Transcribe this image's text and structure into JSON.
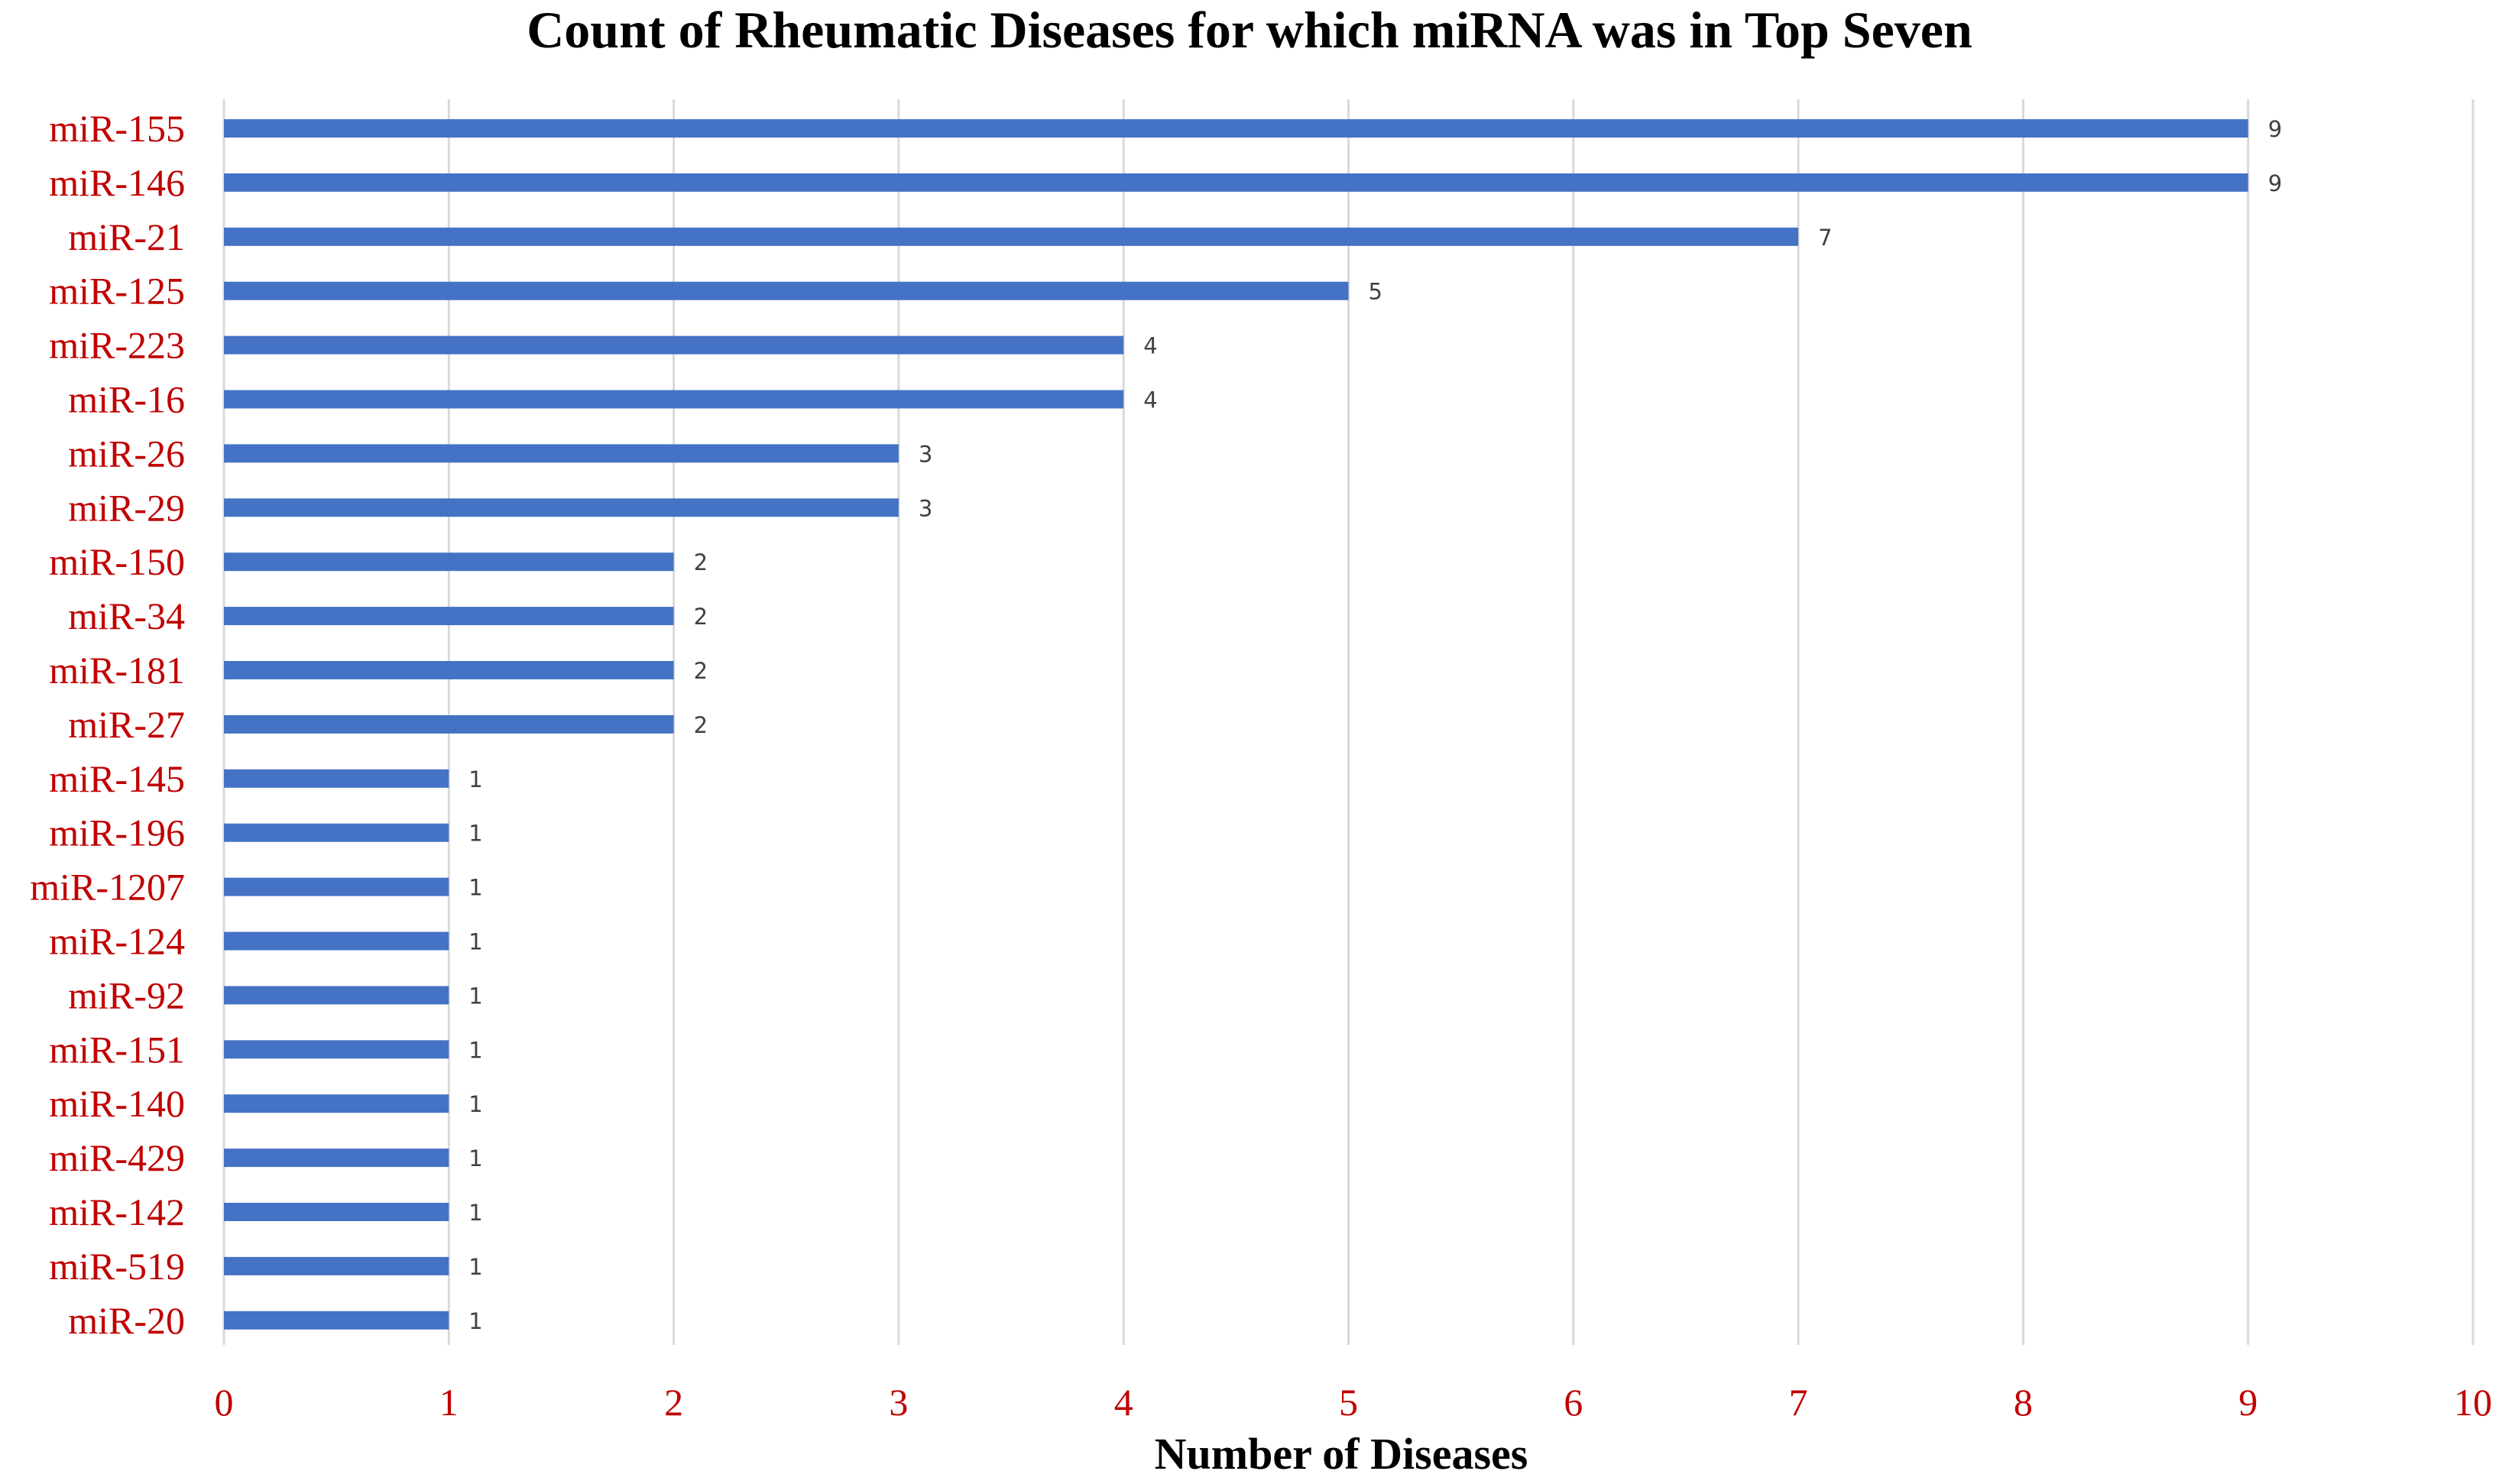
{
  "chart_data": {
    "type": "bar",
    "orientation": "horizontal",
    "title": "Count of Rheumatic Diseases for which miRNA was in Top Seven",
    "xlabel": "Number of Diseases",
    "ylabel": "",
    "xlim": [
      0,
      10
    ],
    "x_ticks": [
      "0",
      "1",
      "2",
      "3",
      "4",
      "5",
      "6",
      "7",
      "8",
      "9",
      "10"
    ],
    "categories": [
      "miR-155",
      "miR-146",
      "miR-21",
      "miR-125",
      "miR-223",
      "miR-16",
      "miR-26",
      "miR-29",
      "miR-150",
      "miR-34",
      "miR-181",
      "miR-27",
      "miR-145",
      "miR-196",
      "miR-1207",
      "miR-124",
      "miR-92",
      "miR-151",
      "miR-140",
      "miR-429",
      "miR-142",
      "miR-519",
      "miR-20"
    ],
    "values": [
      9,
      9,
      7,
      5,
      4,
      4,
      3,
      3,
      2,
      2,
      2,
      2,
      1,
      1,
      1,
      1,
      1,
      1,
      1,
      1,
      1,
      1,
      1
    ],
    "data_labels": [
      "9",
      "9",
      "7",
      "5",
      "4",
      "4",
      "3",
      "3",
      "2",
      "2",
      "2",
      "2",
      "1",
      "1",
      "1",
      "1",
      "1",
      "1",
      "1",
      "1",
      "1",
      "1",
      "1"
    ],
    "grid": "vertical",
    "legend": "none",
    "colors": {
      "bar": "#4472c4",
      "category_labels": "#c00000",
      "tick_labels": "#c00000",
      "gridlines": "#d9d9d9",
      "data_labels": "#404040",
      "titles": "#000000"
    }
  }
}
